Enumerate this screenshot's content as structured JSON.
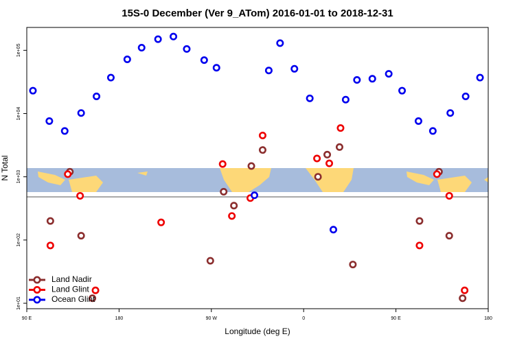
{
  "chart_data": {
    "type": "scatter",
    "title": "15S-0 December (Ver 9_ATom)   2016-01-01 to 2018-12-31",
    "x_label": "Longitude (deg E)",
    "y_label": "N Total",
    "log_y": true,
    "legend": "bottom-left",
    "xlim": [
      90,
      540
    ],
    "xticks": [
      {
        "value": 90,
        "label": "90 E"
      },
      {
        "value": 180,
        "label": "180"
      },
      {
        "value": 270,
        "label": "90 W"
      },
      {
        "value": 360,
        "label": "0"
      },
      {
        "value": 450,
        "label": "90 E"
      },
      {
        "value": 540,
        "label": "180"
      }
    ],
    "ylim": [
      8.2,
      230000
    ],
    "yticks": [
      {
        "value": 10,
        "label": "1e+01"
      },
      {
        "value": 100,
        "label": "1e+02"
      },
      {
        "value": 1000,
        "label": "1e+03"
      },
      {
        "value": 10000,
        "label": "1e+04"
      },
      {
        "value": 100000,
        "label": "1e+05"
      }
    ],
    "series": [
      {
        "name": "Land Nadir",
        "color": "#8b2e2e",
        "x": [
          113,
          132,
          143,
          154,
          269,
          282,
          292,
          309,
          320,
          374,
          383,
          395,
          408,
          473,
          492,
          502,
          515
        ],
        "values": [
          200,
          1200,
          117,
          12,
          47,
          580,
          350,
          1480,
          2650,
          1000,
          2240,
          2950,
          41,
          200,
          1200,
          117,
          12
        ]
      },
      {
        "name": "Land Glint",
        "color": "#ee0000",
        "x": [
          113,
          130,
          142,
          157,
          221,
          281,
          290,
          308,
          320,
          373,
          385,
          396,
          473,
          490,
          502,
          517
        ],
        "values": [
          82,
          1100,
          500,
          16,
          190,
          1590,
          240,
          460,
          4500,
          1950,
          1630,
          5900,
          82,
          1100,
          500,
          16
        ]
      },
      {
        "name": "Ocean Glint",
        "color": "#0000ee",
        "x": [
          96,
          112,
          127,
          143,
          158,
          172,
          188,
          202,
          218,
          233,
          246,
          263,
          275,
          312,
          326,
          337,
          351,
          366,
          389,
          401,
          412,
          427,
          443,
          456,
          472,
          486,
          503,
          518,
          532
        ],
        "values": [
          23000,
          7600,
          5300,
          10200,
          18700,
          37000,
          72000,
          110000,
          150000,
          165000,
          105000,
          70000,
          53000,
          510,
          48000,
          130000,
          51000,
          17400,
          146,
          16600,
          34000,
          35500,
          42500,
          23000,
          7600,
          5300,
          10200,
          18700,
          37000
        ]
      }
    ]
  }
}
